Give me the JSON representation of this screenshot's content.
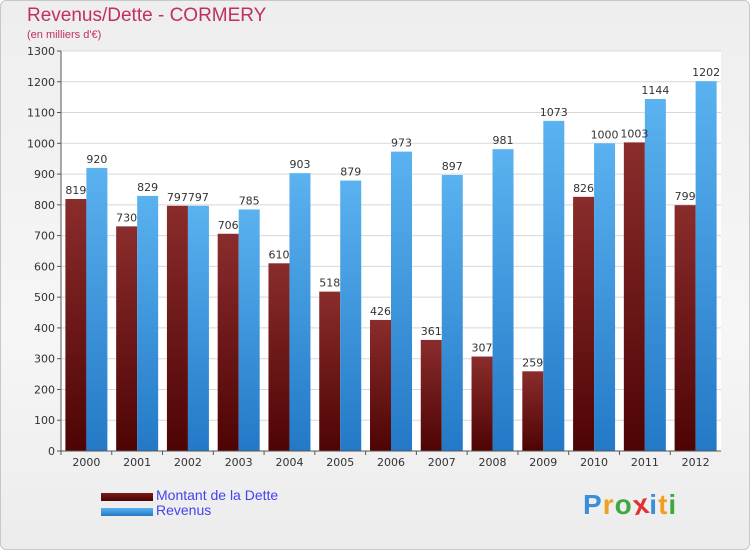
{
  "header": {
    "title": "Revenus/Dette - CORMERY",
    "subtitle": "(en milliers d'€)"
  },
  "chart_data": {
    "type": "bar",
    "categories": [
      "2000",
      "2001",
      "2002",
      "2003",
      "2004",
      "2005",
      "2006",
      "2007",
      "2008",
      "2009",
      "2010",
      "2011",
      "2012"
    ],
    "series": [
      {
        "name": "Montant de la Dette",
        "color": "#7a1a1a",
        "values": [
          819,
          730,
          797,
          706,
          610,
          518,
          426,
          361,
          307,
          259,
          826,
          1003,
          799
        ]
      },
      {
        "name": "Revenus",
        "color": "#3d9fe6",
        "values": [
          920,
          829,
          797,
          785,
          903,
          879,
          973,
          897,
          981,
          1073,
          1000,
          1144,
          1202
        ]
      }
    ],
    "data_labels": [
      [
        "819",
        "730",
        "797",
        "706",
        "610",
        "518",
        "426",
        "361",
        "307",
        "259",
        "826",
        "1003",
        "799"
      ],
      [
        "920",
        "829",
        "797",
        "785",
        "903",
        "879",
        "973",
        "897",
        "981",
        "1073",
        "1000",
        "1144",
        "1202"
      ]
    ],
    "y_ticks": [
      "0",
      "100",
      "200",
      "300",
      "400",
      "500",
      "600",
      "700",
      "800",
      "900",
      "1000",
      "1100",
      "1200",
      "1300"
    ],
    "ylim": [
      0,
      1300
    ],
    "grid": true,
    "legend_position": "bottom-left"
  },
  "legend": {
    "items": [
      {
        "label": "Montant de la Dette",
        "color": "#5a0d0d"
      },
      {
        "label": "Revenus",
        "color": "#3d9fe6"
      }
    ]
  },
  "logo": {
    "letters": [
      "P",
      "r",
      "o",
      "x",
      "i",
      "t",
      "i"
    ],
    "colors": [
      "#3a8fd8",
      "#f0a020",
      "#40a840",
      "#e03030",
      "#3a8fd8",
      "#f0a020",
      "#40a840"
    ]
  }
}
